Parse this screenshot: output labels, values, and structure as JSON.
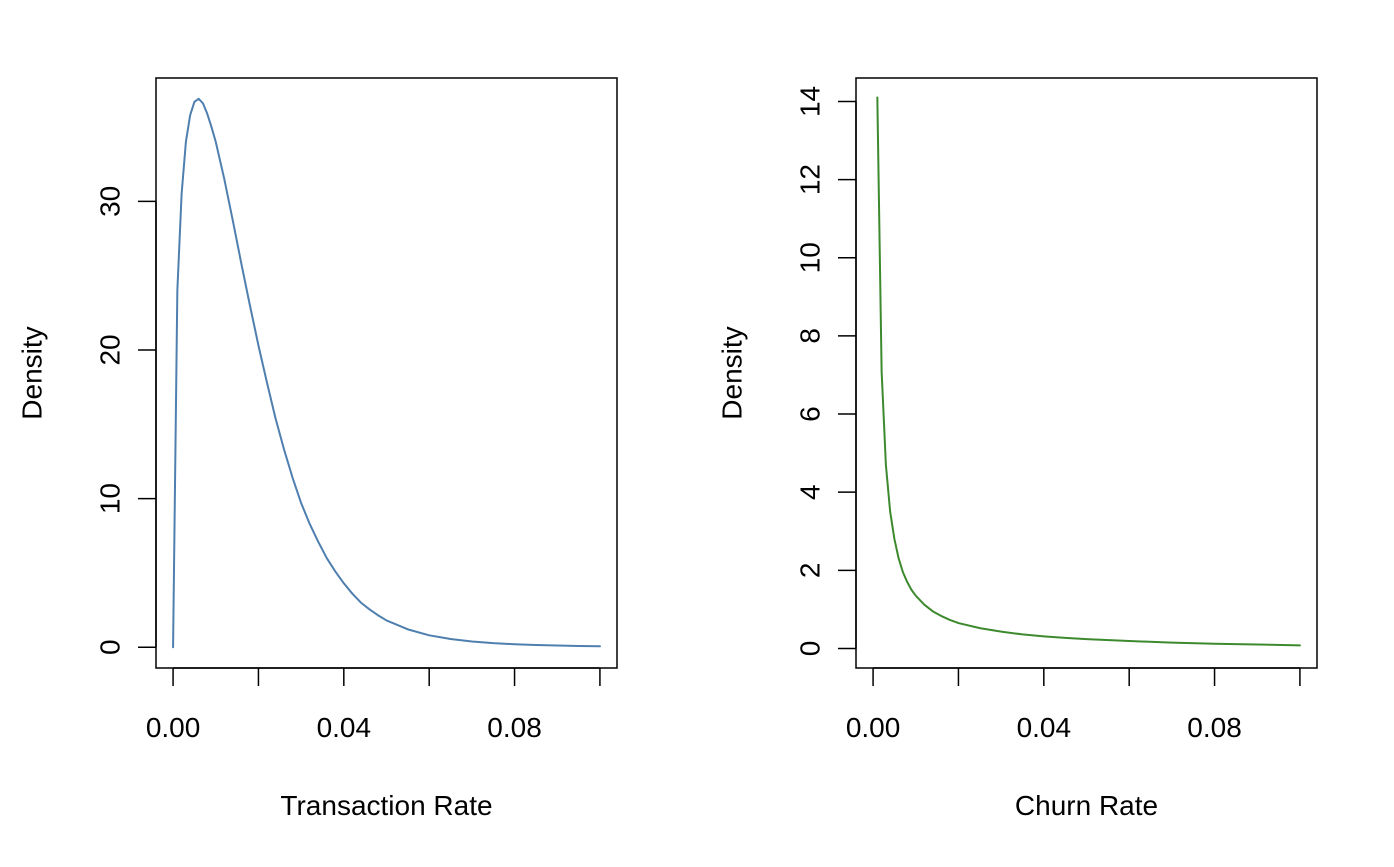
{
  "chart_data": [
    {
      "type": "line",
      "title": "",
      "xlabel": "Transaction Rate",
      "ylabel": "Density",
      "xlim": [
        -0.004,
        0.104
      ],
      "ylim": [
        -1.4,
        38.3
      ],
      "x_ticks": [
        0.0,
        0.02,
        0.04,
        0.06,
        0.08,
        0.1
      ],
      "x_tick_labels": [
        "0.00",
        "",
        "0.04",
        "",
        "0.08",
        ""
      ],
      "y_ticks": [
        0,
        10,
        20,
        30
      ],
      "y_tick_labels": [
        "0",
        "10",
        "20",
        "30"
      ],
      "grid": false,
      "color": "#4F7FAF",
      "series": [
        {
          "x": [
            0.0,
            0.001,
            0.002,
            0.003,
            0.004,
            0.005,
            0.006,
            0.007,
            0.008,
            0.009,
            0.01,
            0.012,
            0.014,
            0.016,
            0.018,
            0.02,
            0.022,
            0.024,
            0.026,
            0.028,
            0.03,
            0.032,
            0.034,
            0.036,
            0.038,
            0.04,
            0.042,
            0.044,
            0.046,
            0.048,
            0.05,
            0.055,
            0.06,
            0.065,
            0.07,
            0.075,
            0.08,
            0.085,
            0.09,
            0.095,
            0.1
          ],
          "y": [
            0.0,
            24.0,
            30.5,
            34.0,
            35.8,
            36.7,
            36.9,
            36.6,
            35.9,
            35.0,
            34.0,
            31.5,
            28.7,
            25.8,
            23.0,
            20.3,
            17.8,
            15.4,
            13.3,
            11.4,
            9.7,
            8.3,
            7.1,
            6.0,
            5.1,
            4.3,
            3.6,
            3.0,
            2.55,
            2.15,
            1.8,
            1.2,
            0.8,
            0.55,
            0.38,
            0.27,
            0.2,
            0.15,
            0.11,
            0.08,
            0.06
          ]
        }
      ]
    },
    {
      "type": "line",
      "title": "",
      "xlabel": "Churn Rate",
      "ylabel": "Density",
      "xlim": [
        -0.004,
        0.104
      ],
      "ylim": [
        -0.5,
        14.6
      ],
      "x_ticks": [
        0.0,
        0.02,
        0.04,
        0.06,
        0.08,
        0.1
      ],
      "x_tick_labels": [
        "0.00",
        "",
        "0.04",
        "",
        "0.08",
        ""
      ],
      "y_ticks": [
        0,
        2,
        4,
        6,
        8,
        10,
        12,
        14
      ],
      "y_tick_labels": [
        "0",
        "2",
        "4",
        "6",
        "8",
        "10",
        "12",
        "14"
      ],
      "grid": false,
      "color": "#3D8A2E",
      "series": [
        {
          "x": [
            0.001,
            0.002,
            0.003,
            0.004,
            0.005,
            0.006,
            0.007,
            0.008,
            0.009,
            0.01,
            0.012,
            0.014,
            0.016,
            0.018,
            0.02,
            0.025,
            0.03,
            0.035,
            0.04,
            0.045,
            0.05,
            0.06,
            0.07,
            0.08,
            0.09,
            0.1
          ],
          "y": [
            14.1,
            7.1,
            4.7,
            3.5,
            2.8,
            2.3,
            1.95,
            1.7,
            1.5,
            1.35,
            1.12,
            0.95,
            0.83,
            0.73,
            0.65,
            0.52,
            0.43,
            0.36,
            0.31,
            0.27,
            0.24,
            0.19,
            0.15,
            0.12,
            0.1,
            0.08
          ]
        }
      ]
    }
  ]
}
